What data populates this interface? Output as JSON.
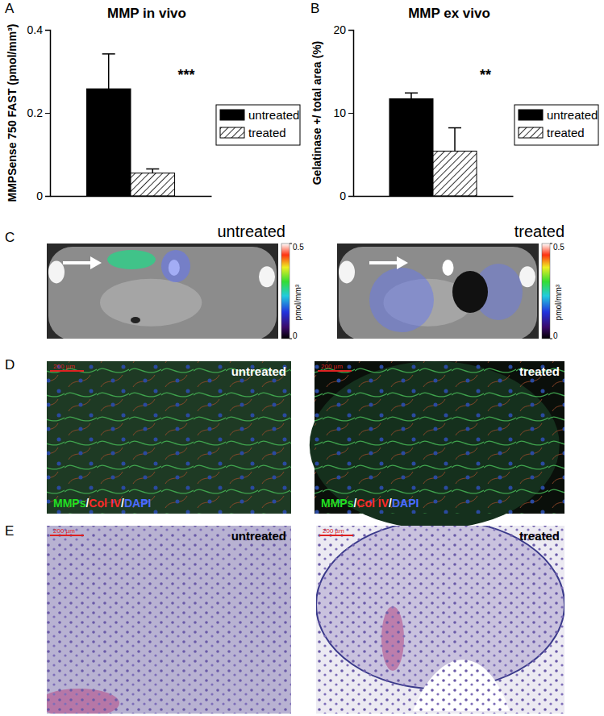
{
  "chart_data": [
    {
      "type": "bar",
      "panel": "A",
      "title": "MMP in vivo",
      "y_label": "MMPSense 750 FAST (pmol/mm³)",
      "categories": [
        null
      ],
      "series": [
        {
          "name": "untreated",
          "color": "#000000",
          "marker": "solid",
          "values": [
            0.258
          ],
          "errors": [
            0.084
          ]
        },
        {
          "name": "treated",
          "color": "#ffffff",
          "marker": "hatch",
          "values": [
            0.055
          ],
          "errors": [
            0.01
          ]
        }
      ],
      "ylim": [
        0,
        0.4
      ],
      "yticks": [
        0,
        0.2,
        0.4
      ],
      "legend": "right",
      "annotation": "***"
    },
    {
      "type": "bar",
      "panel": "B",
      "title": "MMP ex vivo",
      "y_label": "Gelatinase +/ total area (%)",
      "categories": [
        null
      ],
      "series": [
        {
          "name": "untreated",
          "color": "#000000",
          "marker": "solid",
          "values": [
            11.7
          ],
          "errors": [
            0.7
          ]
        },
        {
          "name": "treated",
          "color": "#ffffff",
          "marker": "hatch",
          "values": [
            5.4
          ],
          "errors": [
            2.8
          ]
        }
      ],
      "ylim": [
        0,
        20
      ],
      "yticks": [
        0,
        10,
        20
      ],
      "legend": "right",
      "annotation": "**"
    }
  ],
  "image_panels": [
    {
      "panel": "C",
      "images": [
        {
          "label": "untreated",
          "colorbar": {
            "range": [
              0,
              0.5
            ],
            "ticks": [
              0,
              0.5
            ],
            "label": "pmol/mm³"
          }
        },
        {
          "label": "treated",
          "colorbar": {
            "range": [
              0,
              0.5
            ],
            "ticks": [
              0,
              0.5
            ],
            "label": "pmol/mm³"
          }
        }
      ]
    },
    {
      "panel": "D",
      "images": [
        {
          "label": "untreated",
          "scale_bar": "200 µm",
          "stains": [
            "MMPs",
            "Col IV",
            "DAPI"
          ],
          "stain_colors": [
            "#22dd22",
            "#ff2a2a",
            "#4a6cff"
          ],
          "separator": "/"
        },
        {
          "label": "treated",
          "scale_bar": "200 µm",
          "stains": [
            "MMPs",
            "Col IV",
            "DAPI"
          ],
          "stain_colors": [
            "#22dd22",
            "#ff2a2a",
            "#4a6cff"
          ],
          "separator": "/"
        }
      ]
    },
    {
      "panel": "E",
      "images": [
        {
          "label": "untreated",
          "scale_bar": "200 µm"
        },
        {
          "label": "treated",
          "scale_bar": "200 µm"
        }
      ]
    }
  ]
}
